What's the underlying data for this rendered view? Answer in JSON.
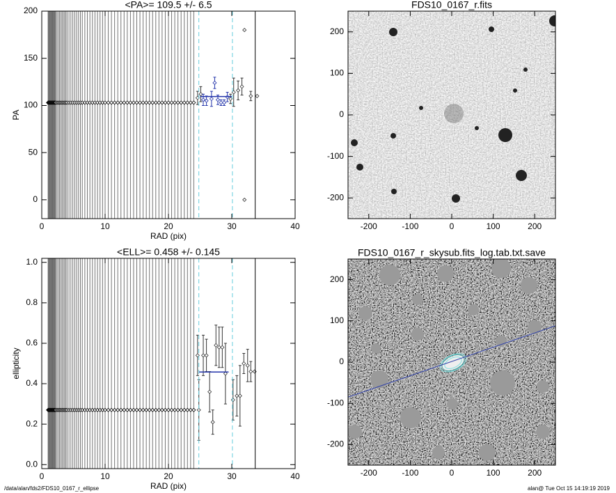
{
  "chart_data": [
    {
      "type": "scatter",
      "title": "<PA>= 109.5 +/-   6.5",
      "xlabel": "RAD (pix)",
      "ylabel": "PA",
      "xlim": [
        0,
        40
      ],
      "ylim": [
        -20,
        200
      ],
      "xticks": [
        0,
        10,
        20,
        30,
        40
      ],
      "yticks": [
        0,
        50,
        100,
        150,
        200
      ],
      "series": [
        {
          "color": "#000000",
          "vlines": true,
          "x": [
            1.0,
            1.1,
            1.2,
            1.3,
            1.4,
            1.5,
            1.6,
            1.7,
            1.8,
            1.9,
            2.0,
            2.1,
            2.2,
            2.4,
            2.6,
            2.8,
            3.0,
            3.2,
            3.4,
            3.6,
            3.8,
            4.0,
            4.3,
            4.6,
            4.9,
            5.2,
            5.5,
            5.8,
            6.1,
            6.4,
            6.8,
            7.2,
            7.6,
            8.0,
            8.4,
            8.8,
            9.2,
            9.6,
            10.0,
            10.5,
            11.0,
            11.5,
            12.0,
            12.5,
            13.0,
            13.5,
            14.0,
            14.5,
            15.0,
            15.5,
            16.0,
            16.5,
            17.0,
            17.5,
            18.0,
            18.5,
            19.0,
            19.5,
            20.0,
            20.5,
            21.0,
            21.5,
            22.0,
            22.5,
            23.0,
            23.5,
            24.0
          ],
          "values": [
            103,
            103,
            103,
            103,
            103,
            103,
            103,
            103,
            103,
            103,
            103,
            103,
            103,
            103,
            103,
            103,
            103,
            103,
            103,
            103,
            103,
            103,
            103,
            103,
            103,
            103,
            103,
            103,
            103,
            103,
            103,
            103,
            103,
            103,
            103,
            103,
            103,
            103,
            103,
            103,
            103,
            103,
            103,
            103,
            103,
            103,
            103,
            103,
            103,
            103,
            103,
            103,
            103,
            103,
            103,
            103,
            103,
            103,
            103,
            103,
            103,
            103,
            103,
            103,
            103,
            103,
            103
          ]
        },
        {
          "color": "#333333",
          "x": [
            24.6,
            25.1,
            29.8,
            30.3,
            31.0,
            31.6,
            32.0,
            32.0,
            33.0,
            34.0
          ],
          "values": [
            108,
            112,
            107,
            114,
            116,
            120,
            180,
            0,
            110,
            110
          ],
          "errors": [
            7,
            8,
            5,
            15,
            10,
            9,
            null,
            null,
            5,
            null
          ]
        },
        {
          "color": "#2233aa",
          "x": [
            25.5,
            26.0,
            26.8,
            27.3,
            27.8,
            28.3,
            28.8,
            29.3
          ],
          "values": [
            106,
            105,
            107,
            124,
            106,
            103,
            103,
            109
          ],
          "errors": [
            6,
            5,
            8,
            6,
            5,
            3,
            3,
            5
          ]
        }
      ],
      "mean_line": {
        "color": "#2233aa",
        "x": [
          25.0,
          30.0
        ],
        "values": [
          109.5,
          109.5
        ]
      },
      "dashed_lines": {
        "color": "#66ccdd",
        "x": [
          24.8,
          30.1
        ]
      },
      "limit_line": {
        "color": "#000000",
        "x": [
          33.7
        ]
      }
    },
    {
      "type": "scatter",
      "title": "<ELL>= 0.458 +/-  0.145",
      "xlabel": "RAD (pix)",
      "ylabel": "ellipticity",
      "xlim": [
        0,
        40
      ],
      "ylim": [
        -0.02,
        1.02
      ],
      "xticks": [
        0,
        10,
        20,
        30,
        40
      ],
      "yticks": [
        {
          "value": 0,
          "label": "0.0"
        },
        0.2,
        0.4,
        0.6,
        0.8,
        {
          "value": 1,
          "label": "1.0"
        }
      ],
      "series": [
        {
          "color": "#000000",
          "vlines": true,
          "x": [
            1.0,
            1.1,
            1.2,
            1.3,
            1.4,
            1.5,
            1.6,
            1.7,
            1.8,
            1.9,
            2.0,
            2.1,
            2.2,
            2.4,
            2.6,
            2.8,
            3.0,
            3.2,
            3.4,
            3.6,
            3.8,
            4.0,
            4.3,
            4.6,
            4.9,
            5.2,
            5.5,
            5.8,
            6.1,
            6.4,
            6.8,
            7.2,
            7.6,
            8.0,
            8.4,
            8.8,
            9.2,
            9.6,
            10.0,
            10.5,
            11.0,
            11.5,
            12.0,
            12.5,
            13.0,
            13.5,
            14.0,
            14.5,
            15.0,
            15.5,
            16.0,
            16.5,
            17.0,
            17.5,
            18.0,
            18.5,
            19.0,
            19.5,
            20.0,
            20.5,
            21.0,
            21.5,
            22.0,
            22.5,
            23.0,
            23.5,
            24.0
          ],
          "values": [
            0.27,
            0.27,
            0.27,
            0.27,
            0.27,
            0.27,
            0.27,
            0.27,
            0.27,
            0.27,
            0.27,
            0.27,
            0.27,
            0.27,
            0.27,
            0.27,
            0.27,
            0.27,
            0.27,
            0.27,
            0.27,
            0.27,
            0.27,
            0.27,
            0.27,
            0.27,
            0.27,
            0.27,
            0.27,
            0.27,
            0.27,
            0.27,
            0.27,
            0.27,
            0.27,
            0.27,
            0.27,
            0.27,
            0.27,
            0.27,
            0.27,
            0.27,
            0.27,
            0.27,
            0.27,
            0.27,
            0.27,
            0.27,
            0.27,
            0.27,
            0.27,
            0.27,
            0.27,
            0.27,
            0.27,
            0.27,
            0.27,
            0.27,
            0.27,
            0.27,
            0.27,
            0.27,
            0.27,
            0.27,
            0.27,
            0.27,
            0.27
          ]
        },
        {
          "color": "#333333",
          "x": [
            24.6,
            24.8,
            25.5,
            26.0,
            26.5,
            27.0,
            27.5,
            28.0,
            28.5,
            29.0,
            30.2,
            30.8,
            31.3,
            31.9,
            32.5,
            33.0,
            33.6
          ],
          "values": [
            0.54,
            0.27,
            0.54,
            0.54,
            0.36,
            0.21,
            0.59,
            0.58,
            0.58,
            0.45,
            0.32,
            0.34,
            0.34,
            0.5,
            0.49,
            0.46,
            0.46
          ],
          "errors": [
            0.1,
            0.15,
            0.1,
            0.08,
            0.1,
            0.06,
            0.1,
            0.1,
            0.1,
            0.15,
            0.1,
            0.1,
            0.15,
            0.05,
            0.08,
            0.05,
            null
          ]
        }
      ],
      "mean_line": {
        "color": "#2233aa",
        "x": [
          24.8,
          29.5
        ],
        "values": [
          0.458,
          0.458
        ]
      },
      "dashed_lines": {
        "color": "#66ccdd",
        "x": [
          24.8,
          30.1
        ]
      },
      "limit_line": {
        "color": "#000000",
        "x": [
          33.7
        ]
      }
    },
    {
      "type": "image",
      "title": "FDS10_0167_r.fits",
      "xlim": [
        -250,
        250
      ],
      "ylim": [
        -250,
        250
      ],
      "xticks": [
        -200,
        -100,
        0,
        100,
        200
      ],
      "yticks": [
        -200,
        -100,
        0,
        100,
        200
      ]
    },
    {
      "type": "image",
      "title": "FDS10_0167_r_skysub.fits_log.tab.txt.save",
      "xlim": [
        -250,
        250
      ],
      "ylim": [
        -250,
        250
      ],
      "xticks": [
        -200,
        -100,
        0,
        100,
        200
      ],
      "yticks": [
        -200,
        -100,
        0,
        100,
        200
      ],
      "line": {
        "color": "#3344aa",
        "x": [
          -250,
          250
        ],
        "values": [
          -85,
          88
        ]
      }
    }
  ],
  "footer": {
    "left": "/data/alan/fds2/FDS10_0167_r_ellipse",
    "right": "alan@  Tue Oct 15 14:19:19 2019"
  }
}
